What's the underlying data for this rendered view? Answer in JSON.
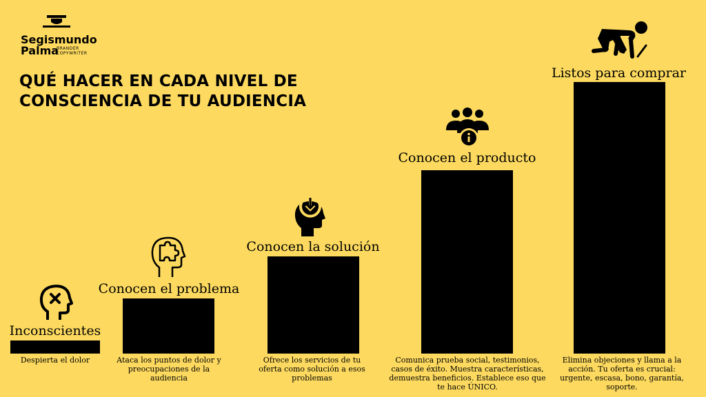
{
  "brand": {
    "name_line1": "Segismundo",
    "name_line2": "Palma",
    "tagline_line1": "BRANDER",
    "tagline_line2": "COPYWRITER"
  },
  "title": "QUÉ HACER EN CADA NIVEL DE CONSCIENCIA DE TU AUDIENCIA",
  "levels": [
    {
      "label": "Inconscientes",
      "icon": "head-cross-icon",
      "description": "Despierta el dolor",
      "rank": 1
    },
    {
      "label": "Conocen el problema",
      "icon": "head-puzzle-icon",
      "description": "Ataca los puntos de dolor y preocupaciones de la audiencia",
      "rank": 2
    },
    {
      "label": "Conocen la solución",
      "icon": "head-download-icon",
      "description": "Ofrece los servicios de tu oferta como solución a esos problemas",
      "rank": 3
    },
    {
      "label": "Conocen el producto",
      "icon": "group-info-icon",
      "description": "Comunica prueba social, testimonios, casos de éxito. Muestra características, demuestra beneficios. Establece eso que te hace ÚNICO.",
      "rank": 4
    },
    {
      "label": "Listos para comprar",
      "icon": "sprinter-start-icon",
      "description": "Elimina objeciones y llama a la acción. Tu oferta es crucial: urgente, escasa, bono, garantía, soporte.",
      "rank": 5
    }
  ],
  "colors": {
    "background": "#FDDA5F",
    "bars": "#000000"
  }
}
